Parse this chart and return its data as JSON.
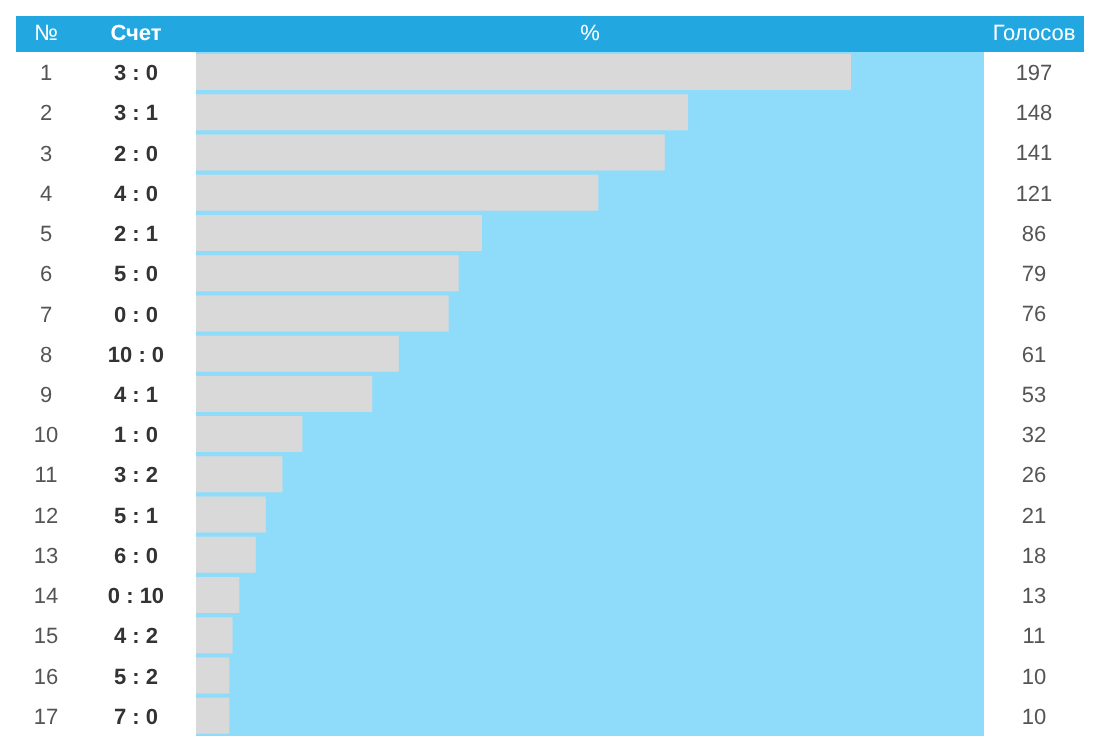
{
  "chart_data": {
    "type": "bar",
    "orientation": "horizontal",
    "xlabel": "%",
    "ylabel": "Счет",
    "y2label": "Голосов",
    "annotations": [
      "№",
      "1",
      "2",
      "3",
      "4",
      "5",
      "6",
      "7",
      "8",
      "9",
      "10",
      "11",
      "12",
      "13",
      "14",
      "15",
      "16",
      "17"
    ],
    "categories": [
      "3 : 0",
      "3 : 1",
      "2 : 0",
      "4 : 0",
      "2 : 1",
      "5 : 0",
      "0 : 0",
      "10 : 0",
      "4 : 1",
      "1 : 0",
      "3 : 2",
      "5 : 1",
      "6 : 0",
      "0 : 10",
      "4 : 2",
      "5 : 2",
      "7 : 0"
    ],
    "values": [
      197,
      148,
      141,
      121,
      86,
      79,
      76,
      61,
      53,
      32,
      26,
      21,
      18,
      13,
      11,
      10,
      10
    ],
    "color": "#d9d9d9",
    "xlim": [
      0,
      237
    ],
    "data_labels": true,
    "bands": [
      {
        "axis": "x",
        "from": 0,
        "to": 237,
        "color": "#8fdcfa"
      }
    ]
  }
}
